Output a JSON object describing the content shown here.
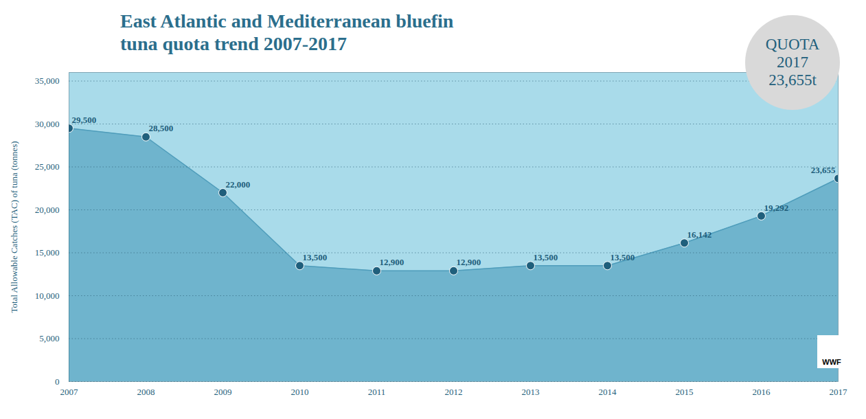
{
  "chart_data": {
    "type": "area",
    "title": "East Atlantic and Mediterranean bluefin tuna quota trend 2007-2017",
    "y_label": "Total Allowable Catches (TAC) of tuna (tonnes)",
    "annotations": [
      "QUOTA",
      "2017",
      "23,655t"
    ],
    "logo": "WWF",
    "x": [
      2007,
      2008,
      2009,
      2010,
      2011,
      2012,
      2013,
      2014,
      2015,
      2016,
      2017
    ],
    "values": [
      29500,
      28500,
      22000,
      13500,
      12900,
      12900,
      13500,
      13500,
      16142,
      19292,
      23655
    ],
    "value_labels": [
      "29,500",
      "28,500",
      "22,000",
      "13,500",
      "12,900",
      "12,900",
      "13,500",
      "13,500",
      "16,142",
      "19,292",
      "23,655"
    ],
    "data_labels": true,
    "color": "#6fb4cd",
    "xlim": [
      2007,
      2017
    ],
    "xticks": [
      2007,
      2008,
      2009,
      2010,
      2011,
      2012,
      2013,
      2014,
      2015,
      2016,
      2017
    ],
    "ylim": [
      0,
      36000
    ],
    "yticks": [
      0,
      {
        "value": 5000,
        "label": "5,000"
      },
      {
        "value": 10000,
        "label": "10,000"
      },
      {
        "value": 15000,
        "label": "15,000"
      },
      {
        "value": 20000,
        "label": "20,000"
      },
      {
        "value": 25000,
        "label": "25,000"
      },
      {
        "value": 30000,
        "label": "30,000"
      },
      {
        "value": 35000,
        "label": "35,000"
      }
    ],
    "grid": true,
    "marker": "circle"
  }
}
